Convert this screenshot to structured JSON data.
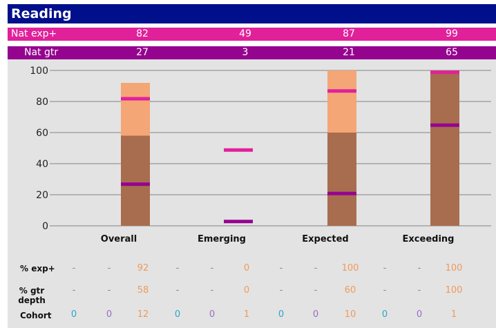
{
  "title": "Reading",
  "nat_exp": {
    "label": "Nat exp+",
    "values": [
      "82",
      "49",
      "87",
      "99"
    ]
  },
  "nat_gtr": {
    "label": "Nat gtr",
    "values": [
      "27",
      "3",
      "21",
      "65"
    ]
  },
  "colors": {
    "title_bg": "#000f8c",
    "nat_exp": "#e0219a",
    "nat_gtr": "#95048f",
    "exp_bar": "#f4a677",
    "gtr_bar": "#a86d4e",
    "dash": "#888888",
    "cohort_teal": "#2aa8c8",
    "cohort_purple": "#9a6ec4",
    "value_orange": "#ef9a5a"
  },
  "chart_data": {
    "type": "bar",
    "categories": [
      "Overall",
      "Emerging",
      "Expected",
      "Exceeding"
    ],
    "series": [
      {
        "name": "% exp+",
        "values": [
          92,
          0,
          100,
          100
        ]
      },
      {
        "name": "% gtr depth",
        "values": [
          58,
          0,
          60,
          100
        ]
      }
    ],
    "markers": {
      "nat_exp": [
        82,
        49,
        87,
        99
      ],
      "nat_gtr": [
        27,
        3,
        21,
        65
      ]
    },
    "yticks": [
      "0",
      "20",
      "40",
      "60",
      "80",
      "100"
    ],
    "ylim": [
      0,
      100
    ],
    "grid": true
  },
  "table": {
    "rows": [
      {
        "label": "% exp+",
        "cells": [
          "-",
          "-",
          "92",
          "-",
          "-",
          "0",
          "-",
          "-",
          "100",
          "-",
          "-",
          "100"
        ]
      },
      {
        "label": "% gtr depth",
        "cells": [
          "-",
          "-",
          "58",
          "-",
          "-",
          "0",
          "-",
          "-",
          "60",
          "-",
          "-",
          "100"
        ]
      },
      {
        "label": "Cohort",
        "cells": [
          "0",
          "0",
          "12",
          "0",
          "0",
          "1",
          "0",
          "0",
          "10",
          "0",
          "0",
          "1"
        ]
      }
    ]
  }
}
